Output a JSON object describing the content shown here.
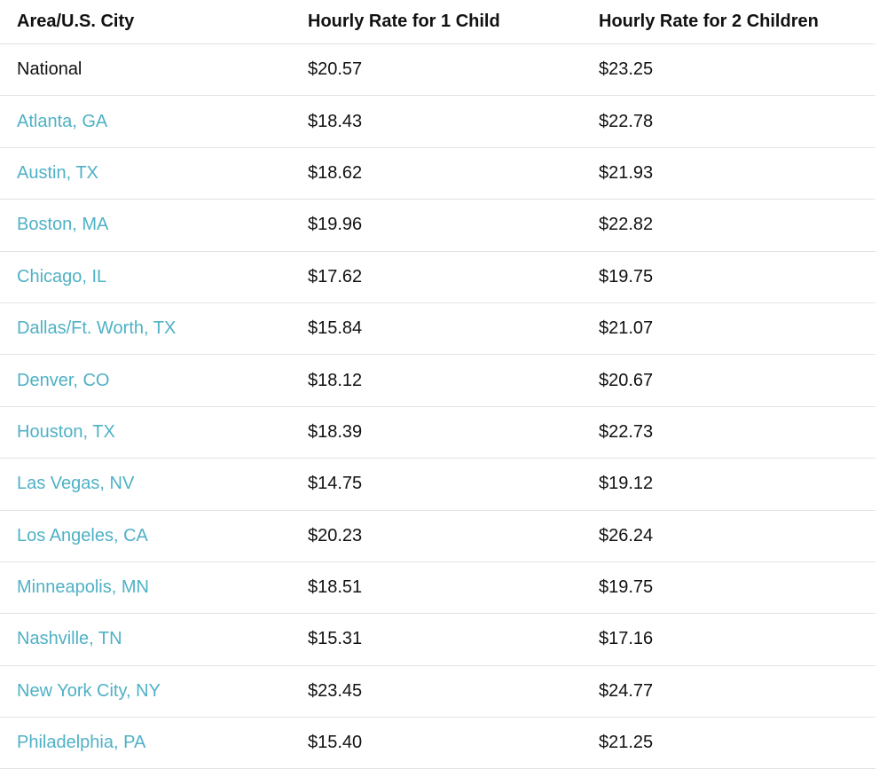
{
  "table": {
    "header": [
      "Area/U.S. City",
      "Hourly Rate for 1 Child",
      "Hourly Rate for 2 Children"
    ],
    "rows": [
      [
        "National",
        "$20.57",
        "$23.25"
      ],
      [
        "Atlanta, GA",
        "$18.43",
        "$22.78"
      ],
      [
        "Austin, TX",
        "$18.62",
        "$21.93"
      ],
      [
        "Boston, MA",
        "$19.96",
        "$22.82"
      ],
      [
        "Chicago, IL",
        "$17.62",
        "$19.75"
      ],
      [
        "Dallas/Ft. Worth, TX",
        "$15.84",
        "$21.07"
      ],
      [
        "Denver, CO",
        "$18.12",
        "$20.67"
      ],
      [
        "Houston, TX",
        "$18.39",
        "$22.73"
      ],
      [
        "Las Vegas, NV",
        "$14.75",
        "$19.12"
      ],
      [
        "Los Angeles, CA",
        "$20.23",
        "$26.24"
      ],
      [
        "Minneapolis, MN",
        "$18.51",
        "$19.75"
      ],
      [
        "Nashville, TN",
        "$15.31",
        "$17.16"
      ],
      [
        "New York City, NY",
        "$23.45",
        "$24.77"
      ],
      [
        "Philadelphia, PA",
        "$15.40",
        "$21.25"
      ]
    ]
  }
}
